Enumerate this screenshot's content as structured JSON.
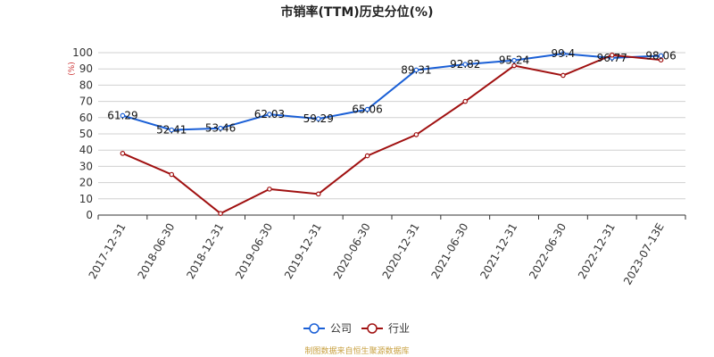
{
  "chart_data": {
    "type": "line",
    "title": "市销率(TTM)历史分位(%)",
    "y_unit": "(%)",
    "categories": [
      "2017-12-31",
      "2018-06-30",
      "2018-12-31",
      "2019-06-30",
      "2019-12-31",
      "2020-06-30",
      "2020-12-31",
      "2021-06-30",
      "2021-12-31",
      "2022-06-30",
      "2022-12-31",
      "2023-07-13E"
    ],
    "ylim": [
      0,
      100
    ],
    "yticks": [
      0,
      10,
      20,
      30,
      40,
      50,
      60,
      70,
      80,
      90,
      100
    ],
    "grid": true,
    "legend_position": "bottom",
    "series": [
      {
        "name": "公司",
        "color": "#1a5fd6",
        "values": [
          61.29,
          52.41,
          53.46,
          62.03,
          59.29,
          65.06,
          89.31,
          92.82,
          95.24,
          99.4,
          96.77,
          98.06
        ],
        "labels": [
          "61.29",
          "52.41",
          "53.46",
          "62.03",
          "59.29",
          "65.06",
          "89.31",
          "92.82",
          "95.24",
          "99.4",
          "96.77",
          "98.06"
        ]
      },
      {
        "name": "行业",
        "color": "#a01010",
        "values": [
          38,
          25,
          1,
          16,
          13,
          36.5,
          49.5,
          70,
          92,
          86,
          98.5,
          95.5
        ]
      }
    ]
  },
  "source": "制图数据来自恒生聚源数据库"
}
